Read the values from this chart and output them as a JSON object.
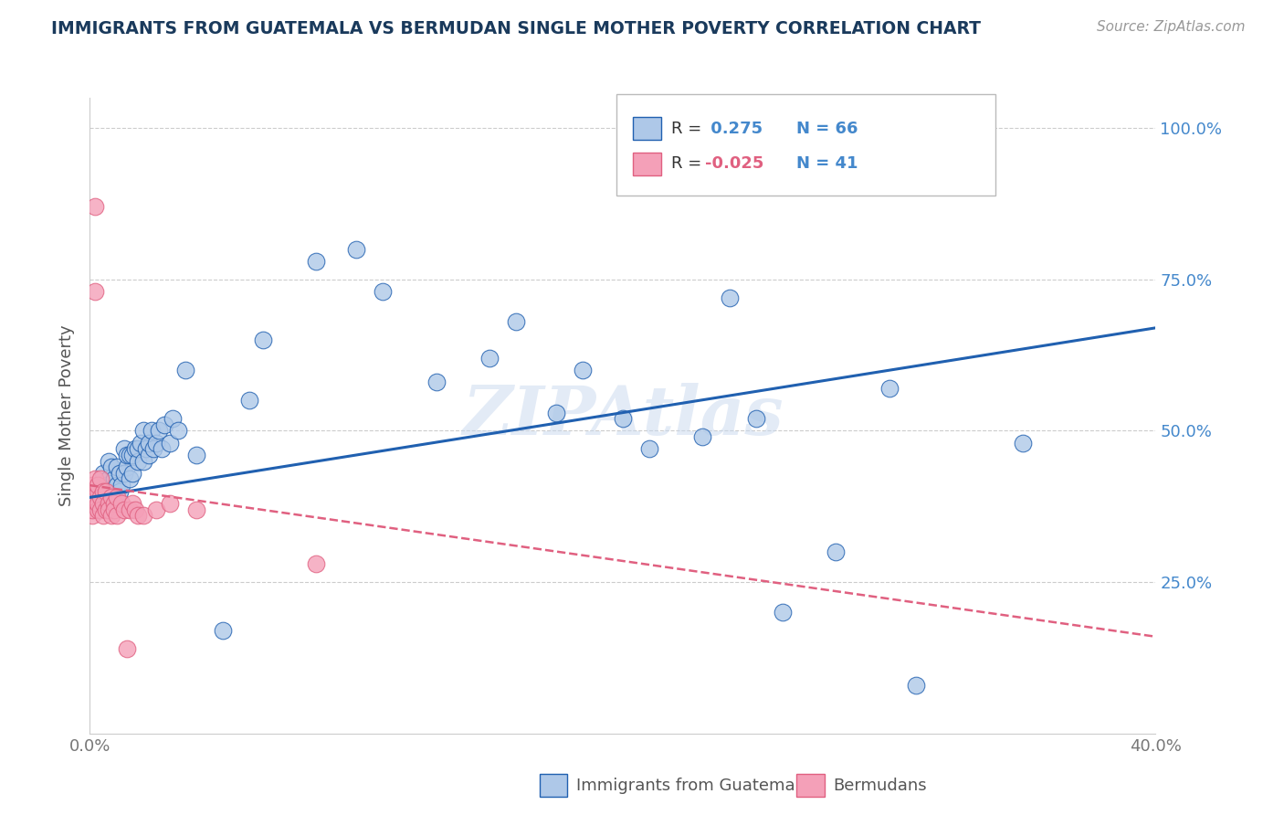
{
  "title": "IMMIGRANTS FROM GUATEMALA VS BERMUDAN SINGLE MOTHER POVERTY CORRELATION CHART",
  "source": "Source: ZipAtlas.com",
  "ylabel": "Single Mother Poverty",
  "legend_label_blue": "Immigrants from Guatemala",
  "legend_label_pink": "Bermudans",
  "R_blue": 0.275,
  "N_blue": 66,
  "R_pink": -0.025,
  "N_pink": 41,
  "xlim": [
    0.0,
    0.4
  ],
  "ylim": [
    0.0,
    1.05
  ],
  "xtick_positions": [
    0.0,
    0.1,
    0.2,
    0.3,
    0.4
  ],
  "xticklabels": [
    "0.0%",
    "",
    "",
    "",
    "40.0%"
  ],
  "ytick_positions": [
    0.25,
    0.5,
    0.75,
    1.0
  ],
  "yticklabels": [
    "25.0%",
    "50.0%",
    "75.0%",
    "100.0%"
  ],
  "blue_fill": "#aec8e8",
  "pink_fill": "#f4a0b8",
  "line_blue_color": "#2060b0",
  "line_pink_color": "#e06080",
  "watermark": "ZIPAtlas",
  "blue_points_x": [
    0.002,
    0.003,
    0.004,
    0.005,
    0.005,
    0.006,
    0.007,
    0.007,
    0.008,
    0.008,
    0.009,
    0.009,
    0.01,
    0.01,
    0.011,
    0.011,
    0.012,
    0.013,
    0.013,
    0.014,
    0.014,
    0.015,
    0.015,
    0.016,
    0.016,
    0.017,
    0.018,
    0.018,
    0.019,
    0.02,
    0.02,
    0.021,
    0.022,
    0.022,
    0.023,
    0.024,
    0.025,
    0.026,
    0.027,
    0.028,
    0.03,
    0.031,
    0.033,
    0.036,
    0.04,
    0.05,
    0.06,
    0.065,
    0.085,
    0.1,
    0.11,
    0.13,
    0.15,
    0.16,
    0.175,
    0.185,
    0.2,
    0.21,
    0.23,
    0.24,
    0.25,
    0.26,
    0.28,
    0.3,
    0.31,
    0.35
  ],
  "blue_points_y": [
    0.38,
    0.4,
    0.41,
    0.4,
    0.43,
    0.41,
    0.42,
    0.45,
    0.4,
    0.44,
    0.39,
    0.42,
    0.41,
    0.44,
    0.4,
    0.43,
    0.41,
    0.43,
    0.47,
    0.44,
    0.46,
    0.42,
    0.46,
    0.43,
    0.46,
    0.47,
    0.45,
    0.47,
    0.48,
    0.45,
    0.5,
    0.47,
    0.46,
    0.48,
    0.5,
    0.47,
    0.48,
    0.5,
    0.47,
    0.51,
    0.48,
    0.52,
    0.5,
    0.6,
    0.46,
    0.17,
    0.55,
    0.65,
    0.78,
    0.8,
    0.73,
    0.58,
    0.62,
    0.68,
    0.53,
    0.6,
    0.52,
    0.47,
    0.49,
    0.72,
    0.52,
    0.2,
    0.3,
    0.57,
    0.08,
    0.48
  ],
  "pink_points_x": [
    0.001,
    0.001,
    0.001,
    0.001,
    0.001,
    0.002,
    0.002,
    0.002,
    0.002,
    0.003,
    0.003,
    0.003,
    0.003,
    0.004,
    0.004,
    0.004,
    0.005,
    0.005,
    0.005,
    0.006,
    0.006,
    0.007,
    0.007,
    0.008,
    0.008,
    0.009,
    0.009,
    0.01,
    0.01,
    0.012,
    0.013,
    0.014,
    0.015,
    0.016,
    0.017,
    0.018,
    0.02,
    0.025,
    0.03,
    0.04,
    0.085
  ],
  "pink_points_y": [
    0.4,
    0.41,
    0.38,
    0.36,
    0.37,
    0.87,
    0.73,
    0.42,
    0.39,
    0.4,
    0.41,
    0.37,
    0.38,
    0.39,
    0.42,
    0.37,
    0.4,
    0.38,
    0.36,
    0.4,
    0.37,
    0.38,
    0.37,
    0.39,
    0.36,
    0.38,
    0.37,
    0.39,
    0.36,
    0.38,
    0.37,
    0.14,
    0.37,
    0.38,
    0.37,
    0.36,
    0.36,
    0.37,
    0.38,
    0.37,
    0.28
  ],
  "blue_line_x": [
    0.0,
    0.4
  ],
  "blue_line_y": [
    0.39,
    0.67
  ],
  "pink_line_x": [
    0.0,
    0.4
  ],
  "pink_line_y": [
    0.41,
    0.16
  ]
}
